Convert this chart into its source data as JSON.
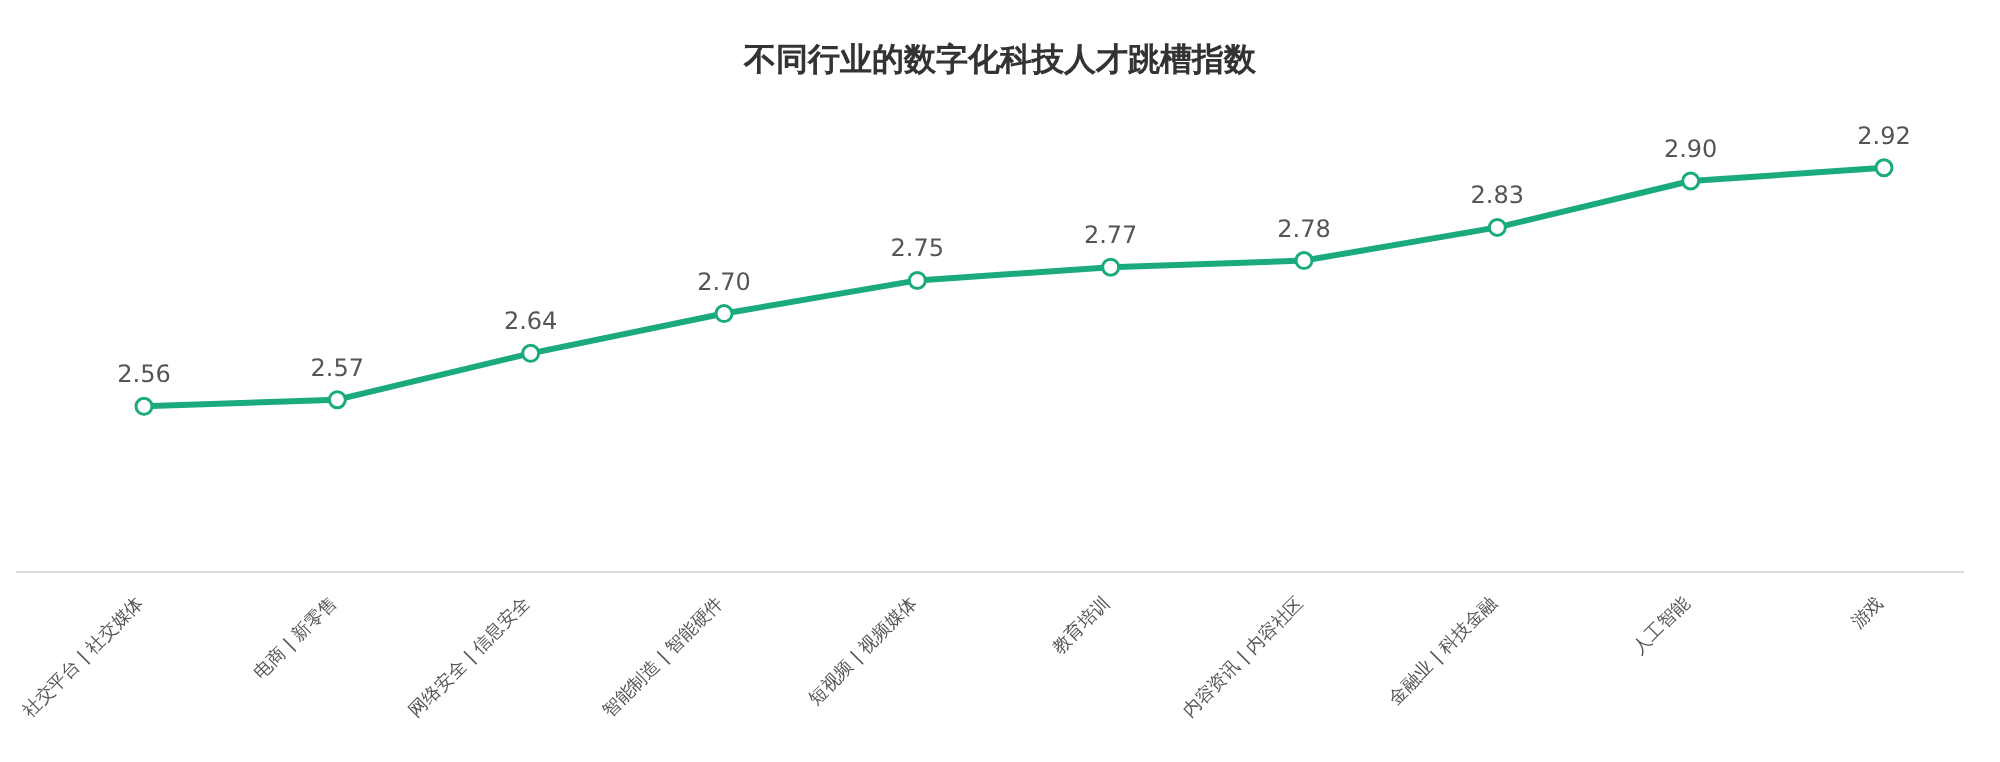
{
  "chart_data": {
    "type": "line",
    "title": "不同行业的数字化科技人才跳槽指数",
    "categories": [
      "社交平台 | 社交媒体",
      "电商 | 新零售",
      "网络安全 | 信息安全",
      "智能制造 | 智能硬件",
      "短视频 | 视频媒体",
      "教育培训",
      "内容资讯 | 内容社区",
      "金融业 | 科技金融",
      "人工智能",
      "游戏"
    ],
    "series": [
      {
        "color": "#1aaa7e",
        "values": [
          2.56,
          2.57,
          2.64,
          2.7,
          2.75,
          2.77,
          2.78,
          2.83,
          2.9,
          2.92
        ],
        "value_labels": [
          "2.56",
          "2.57",
          "2.64",
          "2.70",
          "2.75",
          "2.77",
          "2.78",
          "2.83",
          "2.90",
          "2.92"
        ]
      }
    ],
    "marker": "circle",
    "tick_labels": "x"
  }
}
